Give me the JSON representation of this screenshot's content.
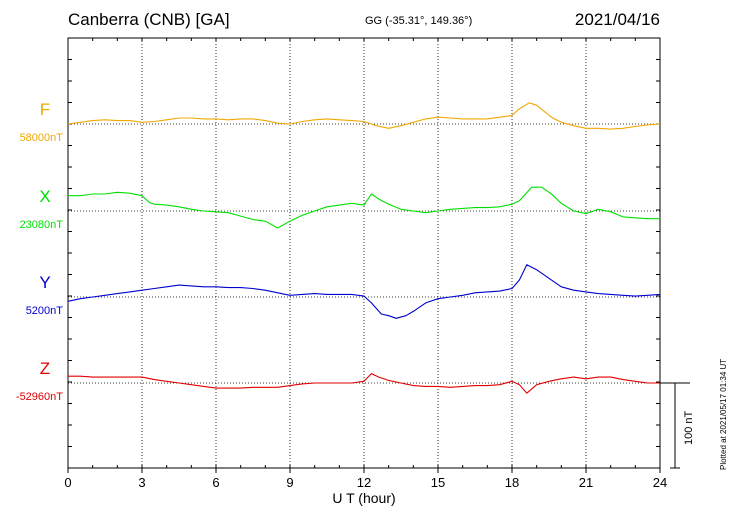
{
  "header": {
    "station": "Canberra (CNB)  [GA]",
    "coords": "GG (-35.31°, 149.36°)",
    "date": "2021/04/16"
  },
  "plotted_note": "Plotted at 2021/05/17 01:34 UT",
  "scale_label": "100 nT",
  "colors": {
    "F": "#f0a800",
    "X": "#00e000",
    "Y": "#0000d0",
    "Z": "#e00000"
  },
  "chart_data": {
    "type": "line",
    "xlabel": "U T (hour)",
    "xlim": [
      0,
      24
    ],
    "xticks": [
      "0",
      "3",
      "6",
      "9",
      "12",
      "15",
      "18",
      "21",
      "24"
    ],
    "scale_bar_nT": 100,
    "grid": true,
    "series": [
      {
        "name": "F",
        "baseline_label": "58000nT",
        "baseline_nT": 58000,
        "x": [
          0,
          0.5,
          1,
          1.5,
          2,
          2.5,
          3,
          3.5,
          4,
          4.5,
          5,
          5.5,
          6,
          6.5,
          7,
          7.5,
          8,
          8.5,
          9,
          9.5,
          10,
          10.5,
          11,
          11.5,
          12,
          12.5,
          13,
          13.5,
          14,
          14.5,
          15,
          15.5,
          16,
          16.5,
          17,
          17.5,
          18,
          18.3,
          18.7,
          19,
          19.3,
          19.6,
          20,
          20.5,
          21,
          21.5,
          22,
          22.5,
          23,
          23.5,
          24
        ],
        "y": [
          58000,
          58002,
          58004,
          58005,
          58004,
          58004,
          58002,
          58003,
          58005,
          58007,
          58007,
          58006,
          58006,
          58005,
          58006,
          58006,
          58004,
          58001,
          58000,
          58003,
          58005,
          58006,
          58005,
          58004,
          58003,
          57998,
          57995,
          57998,
          58002,
          58006,
          58008,
          58007,
          58006,
          58006,
          58006,
          58008,
          58010,
          58018,
          58025,
          58022,
          58015,
          58008,
          58002,
          57998,
          57995,
          57995,
          57994,
          57995,
          57997,
          57999,
          58000
        ]
      },
      {
        "name": "X",
        "baseline_label": "23080nT",
        "baseline_nT": 23080,
        "x": [
          0,
          0.5,
          1,
          1.5,
          2,
          2.5,
          3,
          3.3,
          3.5,
          4,
          4.5,
          5,
          5.5,
          6,
          6.5,
          7,
          7.5,
          8,
          8.5,
          9,
          9.5,
          10,
          10.5,
          11,
          11.5,
          12,
          12.3,
          12.6,
          13,
          13.5,
          14,
          14.5,
          15,
          15.5,
          16,
          16.5,
          17,
          17.5,
          18,
          18.3,
          18.8,
          19.2,
          19.6,
          20,
          20.5,
          21,
          21.5,
          22,
          22.5,
          23,
          23.5,
          24
        ],
        "y": [
          23098,
          23098,
          23100,
          23100,
          23102,
          23101,
          23098,
          23090,
          23088,
          23087,
          23085,
          23082,
          23080,
          23079,
          23078,
          23074,
          23070,
          23068,
          23060,
          23068,
          23075,
          23080,
          23085,
          23087,
          23089,
          23087,
          23100,
          23094,
          23088,
          23082,
          23080,
          23078,
          23080,
          23082,
          23083,
          23084,
          23084,
          23085,
          23088,
          23092,
          23108,
          23108,
          23100,
          23089,
          23080,
          23077,
          23082,
          23079,
          23073,
          23072,
          23071,
          23071
        ]
      },
      {
        "name": "Y",
        "baseline_label": "5200nT",
        "baseline_nT": 5200,
        "x": [
          0,
          0.5,
          1,
          1.5,
          2,
          2.5,
          3,
          3.5,
          4,
          4.5,
          5,
          5.5,
          6,
          6.5,
          7,
          7.5,
          8,
          8.5,
          9,
          9.5,
          10,
          10.5,
          11,
          11.5,
          12,
          12.3,
          12.7,
          13,
          13.3,
          13.7,
          14,
          14.5,
          15,
          15.5,
          16,
          16.5,
          17,
          17.5,
          18,
          18.3,
          18.6,
          19,
          19.5,
          20,
          20.5,
          21,
          21.5,
          22,
          22.5,
          23,
          23.5,
          24
        ],
        "y": [
          5195,
          5198,
          5200,
          5202,
          5204,
          5206,
          5208,
          5210,
          5212,
          5214,
          5213,
          5212,
          5212,
          5211,
          5211,
          5210,
          5208,
          5205,
          5202,
          5203,
          5204,
          5203,
          5203,
          5203,
          5201,
          5193,
          5180,
          5178,
          5175,
          5178,
          5183,
          5193,
          5198,
          5200,
          5202,
          5205,
          5206,
          5207,
          5210,
          5220,
          5238,
          5232,
          5222,
          5212,
          5208,
          5206,
          5204,
          5203,
          5202,
          5201,
          5202,
          5203
        ]
      },
      {
        "name": "Z",
        "baseline_label": "-52960nT",
        "baseline_nT": -52960,
        "x": [
          0,
          0.5,
          1,
          1.5,
          2,
          2.5,
          3,
          3.5,
          4,
          4.5,
          5,
          5.5,
          6,
          6.5,
          7,
          7.5,
          8,
          8.5,
          9,
          9.5,
          10,
          10.5,
          11,
          11.5,
          12,
          12.3,
          12.6,
          13,
          13.5,
          14,
          14.5,
          15,
          15.5,
          16,
          16.5,
          17,
          17.5,
          18,
          18.3,
          18.6,
          19,
          19.5,
          20,
          20.5,
          21,
          21.5,
          22,
          22.5,
          23,
          23.5,
          24
        ],
        "y": [
          -52952,
          -52952,
          -52953,
          -52953,
          -52953,
          -52953,
          -52953,
          -52956,
          -52958,
          -52960,
          -52962,
          -52964,
          -52966,
          -52966,
          -52966,
          -52965,
          -52965,
          -52965,
          -52963,
          -52961,
          -52960,
          -52960,
          -52960,
          -52960,
          -52958,
          -52949,
          -52953,
          -52957,
          -52960,
          -52963,
          -52964,
          -52964,
          -52965,
          -52964,
          -52963,
          -52963,
          -52962,
          -52958,
          -52962,
          -52972,
          -52962,
          -52958,
          -52955,
          -52953,
          -52955,
          -52953,
          -52953,
          -52956,
          -52958,
          -52960,
          -52960
        ]
      }
    ]
  }
}
